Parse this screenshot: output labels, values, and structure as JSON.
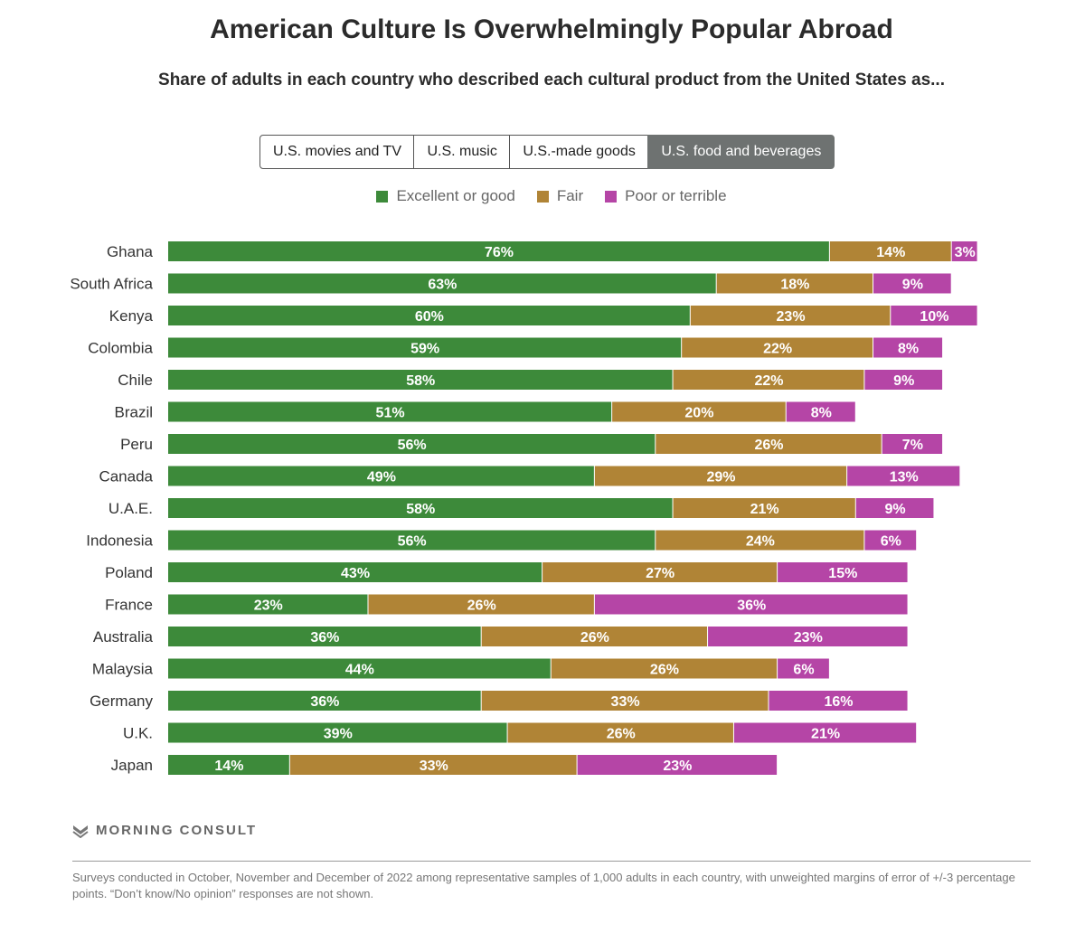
{
  "header": {
    "title": "American Culture Is Overwhelmingly Popular Abroad",
    "subtitle": "Share of adults in each country who described each cultural product from the United States as..."
  },
  "tabs": [
    {
      "label": "U.S. movies and TV",
      "active": false
    },
    {
      "label": "U.S. music",
      "active": false
    },
    {
      "label": "U.S.-made goods",
      "active": false
    },
    {
      "label": "U.S. food and beverages",
      "active": true
    }
  ],
  "colors": {
    "excellent": "#3d8a3a",
    "fair": "#b08436",
    "poor": "#b545a6"
  },
  "chart_data": {
    "type": "bar",
    "orientation": "horizontal",
    "stacked": true,
    "categories": [
      "Ghana",
      "South Africa",
      "Kenya",
      "Colombia",
      "Chile",
      "Brazil",
      "Peru",
      "Canada",
      "U.A.E.",
      "Indonesia",
      "Poland",
      "France",
      "Australia",
      "Malaysia",
      "Germany",
      "U.K.",
      "Japan"
    ],
    "series": [
      {
        "name": "Excellent or good",
        "color": "#3d8a3a",
        "values": [
          76,
          63,
          60,
          59,
          58,
          51,
          56,
          49,
          58,
          56,
          43,
          23,
          36,
          44,
          36,
          39,
          14
        ]
      },
      {
        "name": "Fair",
        "color": "#b08436",
        "values": [
          14,
          18,
          23,
          22,
          22,
          20,
          26,
          29,
          21,
          24,
          27,
          26,
          26,
          26,
          33,
          26,
          33
        ]
      },
      {
        "name": "Poor or terrible",
        "color": "#b545a6",
        "values": [
          3,
          9,
          10,
          8,
          9,
          8,
          7,
          13,
          9,
          6,
          15,
          36,
          23,
          6,
          16,
          21,
          23
        ]
      }
    ],
    "value_suffix": "%",
    "legend_position": "top-center",
    "grid": false
  },
  "footer": {
    "brand": "MORNING CONSULT",
    "note": "Surveys conducted in October, November and December of 2022 among representative samples of 1,000 adults in each country, with unweighted margins of error of +/-3 percentage points. “Don’t know/No opinion” responses are not shown."
  }
}
